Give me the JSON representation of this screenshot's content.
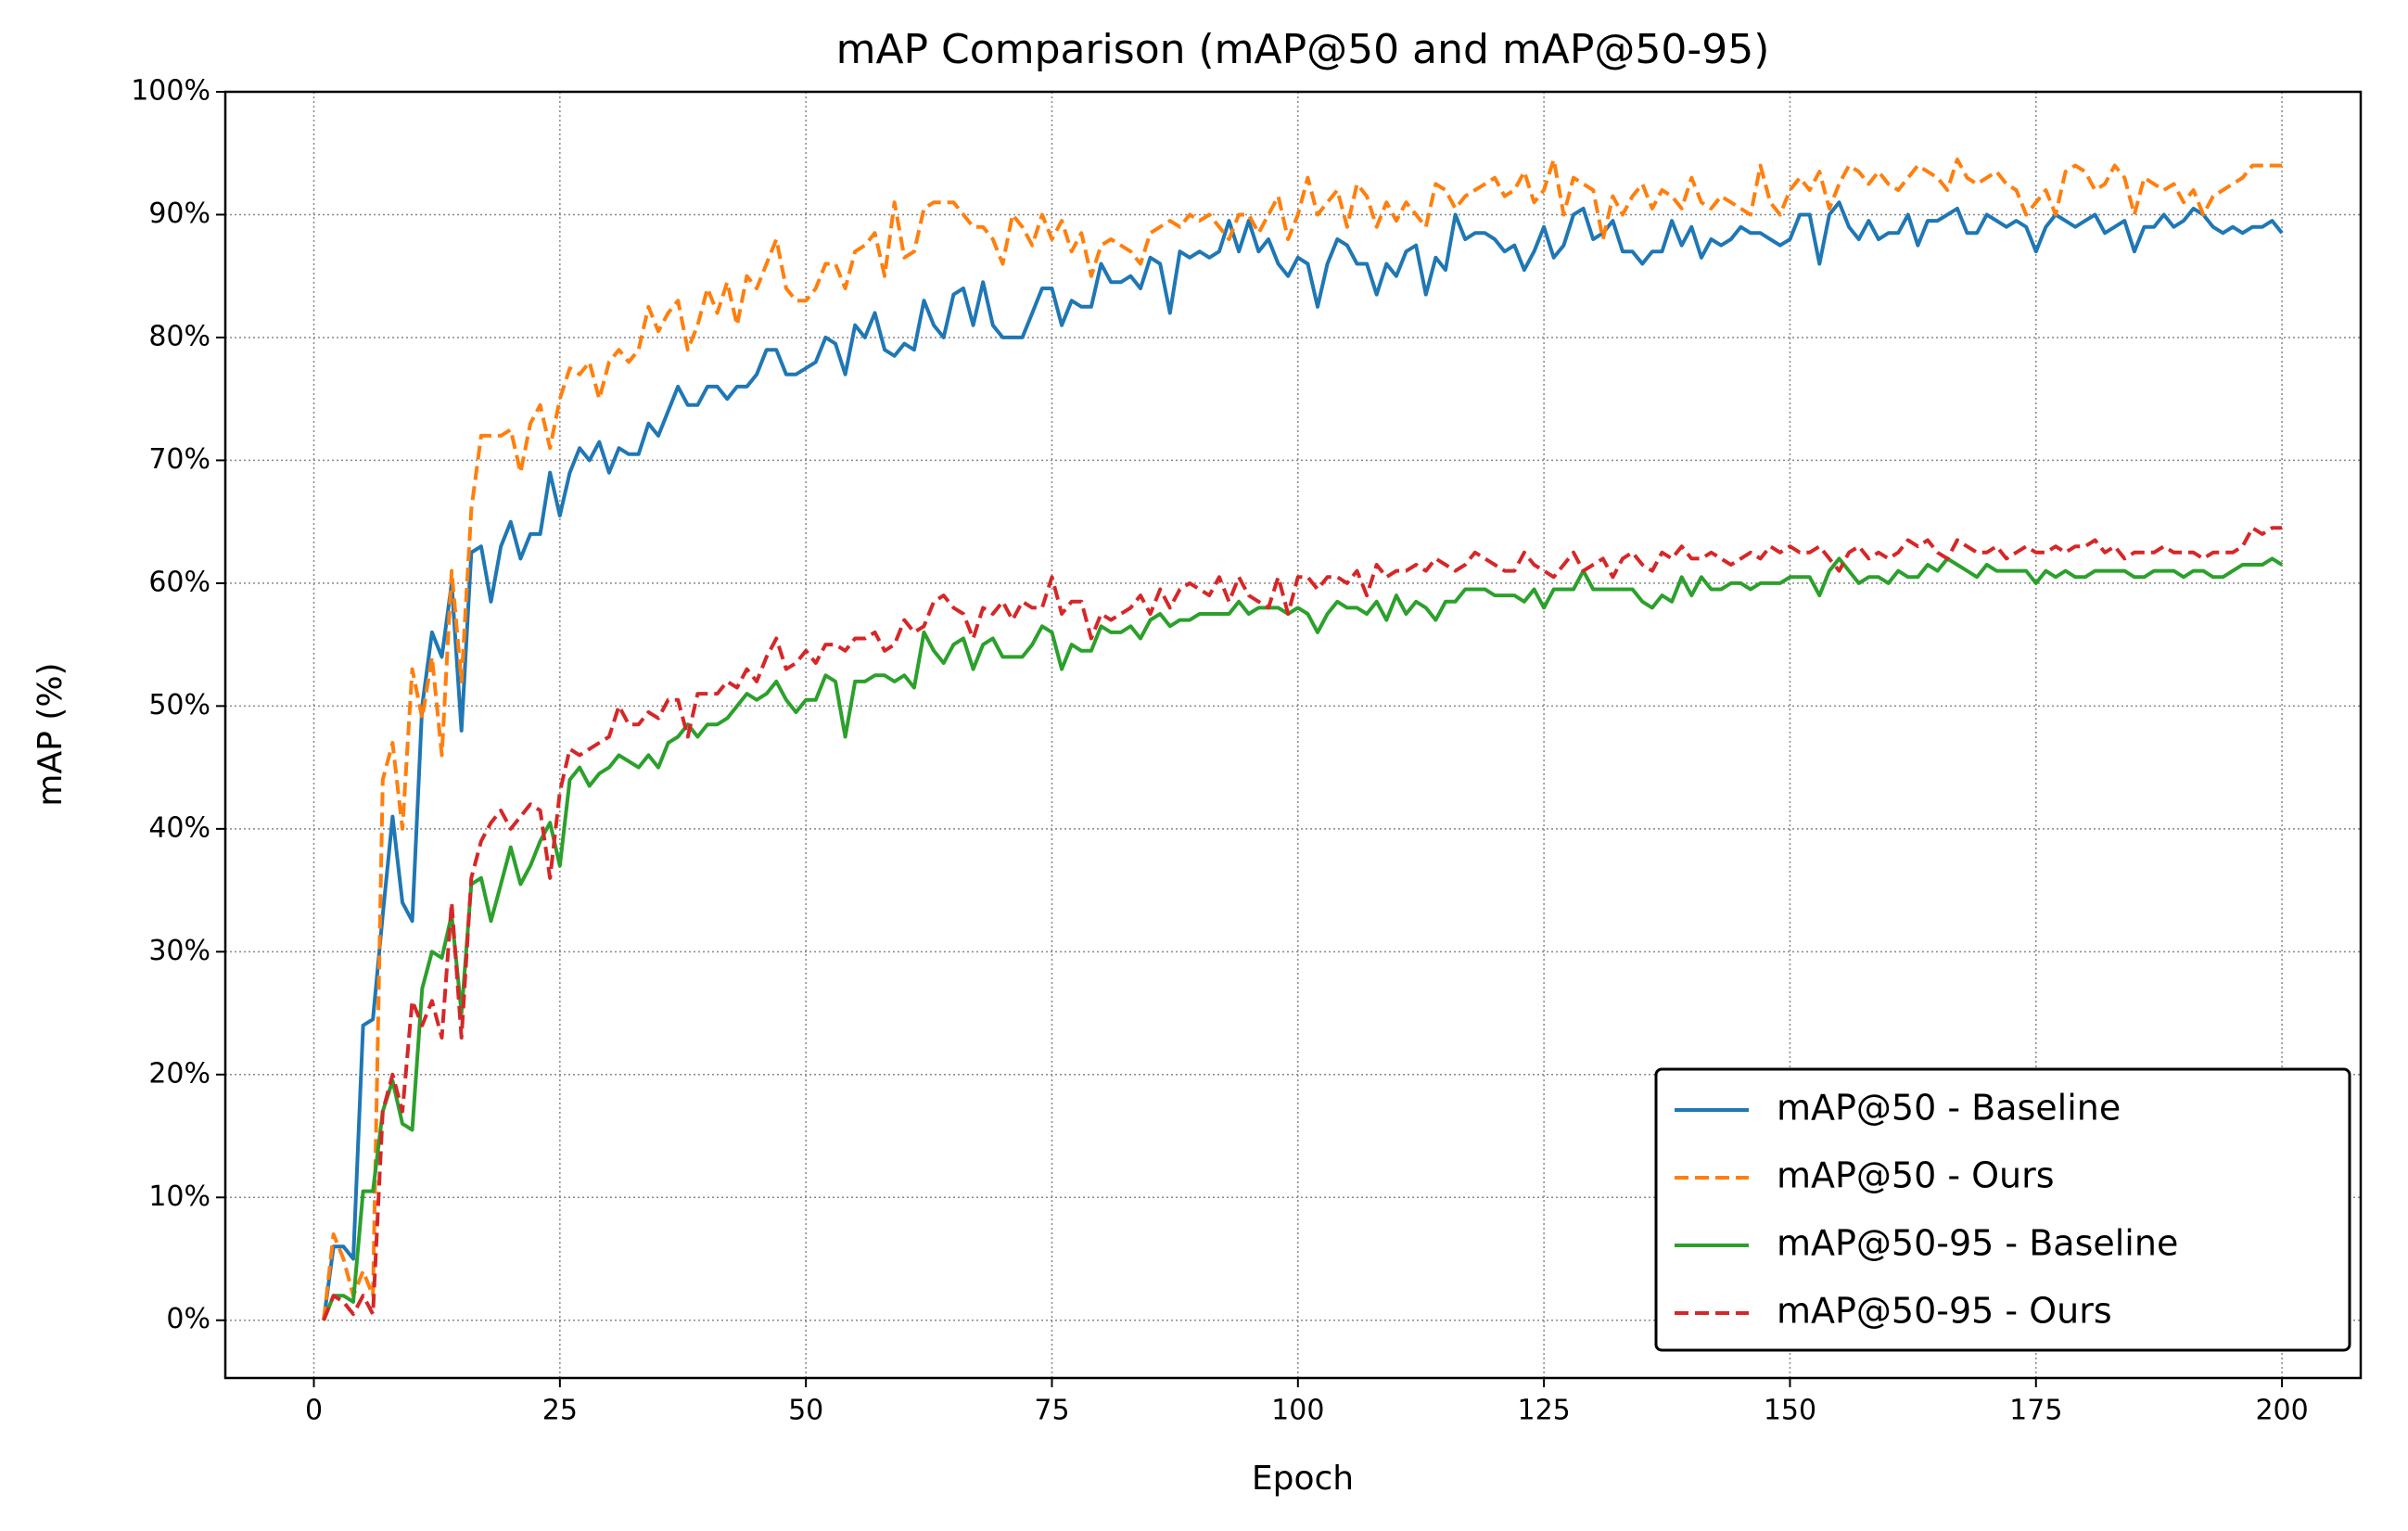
{
  "chart_data": {
    "type": "line",
    "title": "mAP Comparison (mAP@50 and mAP@50-95)",
    "x_label": "Epoch",
    "y_label": "mAP (%)",
    "xlim": [
      -9,
      208
    ],
    "ylim": [
      -4.7,
      100
    ],
    "xticks": [
      0,
      25,
      50,
      75,
      100,
      125,
      150,
      175,
      200
    ],
    "yticks": [
      {
        "value": 0,
        "label": "0%"
      },
      {
        "value": 10,
        "label": "10%"
      },
      {
        "value": 20,
        "label": "20%"
      },
      {
        "value": 30,
        "label": "30%"
      },
      {
        "value": 40,
        "label": "40%"
      },
      {
        "value": 50,
        "label": "50%"
      },
      {
        "value": 60,
        "label": "60%"
      },
      {
        "value": 70,
        "label": "70%"
      },
      {
        "value": 80,
        "label": "80%"
      },
      {
        "value": 90,
        "label": "90%"
      },
      {
        "value": 100,
        "label": "100%"
      }
    ],
    "grid": true,
    "legend": "lower right",
    "x": [
      1,
      2,
      3,
      4,
      5,
      6,
      7,
      8,
      9,
      10,
      11,
      12,
      13,
      14,
      15,
      16,
      17,
      18,
      19,
      20,
      21,
      22,
      23,
      24,
      25,
      26,
      27,
      28,
      29,
      30,
      31,
      32,
      33,
      34,
      35,
      36,
      37,
      38,
      39,
      40,
      41,
      42,
      43,
      44,
      45,
      46,
      47,
      48,
      49,
      50,
      51,
      52,
      53,
      54,
      55,
      56,
      57,
      58,
      59,
      60,
      61,
      62,
      63,
      64,
      65,
      66,
      67,
      68,
      69,
      70,
      71,
      72,
      73,
      74,
      75,
      76,
      77,
      78,
      79,
      80,
      81,
      82,
      83,
      84,
      85,
      86,
      87,
      88,
      89,
      90,
      91,
      92,
      93,
      94,
      95,
      96,
      97,
      98,
      99,
      100,
      101,
      102,
      103,
      104,
      105,
      106,
      107,
      108,
      109,
      110,
      111,
      112,
      113,
      114,
      115,
      116,
      117,
      118,
      119,
      120,
      121,
      122,
      123,
      124,
      125,
      126,
      127,
      128,
      129,
      130,
      131,
      132,
      133,
      134,
      135,
      136,
      137,
      138,
      139,
      140,
      141,
      142,
      143,
      144,
      145,
      146,
      147,
      148,
      149,
      150,
      151,
      152,
      153,
      154,
      155,
      156,
      157,
      158,
      159,
      160,
      161,
      162,
      163,
      164,
      165,
      166,
      167,
      168,
      169,
      170,
      171,
      172,
      173,
      174,
      175,
      176,
      177,
      178,
      179,
      180,
      181,
      182,
      183,
      184,
      185,
      186,
      187,
      188,
      189,
      190,
      191,
      192,
      193,
      194,
      195,
      196,
      197,
      198,
      199,
      200
    ],
    "series": [
      {
        "name": "mAP@50 - Baseline",
        "color": "#1f77b4",
        "linestyle": "solid",
        "values": [
          0,
          6,
          6,
          5,
          24,
          24.5,
          33,
          41,
          34,
          32.5,
          50,
          56,
          54,
          60,
          48,
          62.5,
          63,
          58.5,
          63,
          65,
          62,
          64,
          64,
          69,
          65.5,
          69,
          71,
          70,
          71.5,
          69,
          71,
          70.5,
          70.5,
          73,
          72,
          74,
          76,
          74.5,
          74.5,
          76,
          76,
          75,
          76,
          76,
          77,
          79,
          79,
          77,
          77,
          77.5,
          78,
          80,
          79.5,
          77,
          81,
          80,
          82,
          79,
          78.5,
          79.5,
          79,
          83,
          81,
          80,
          83.5,
          84,
          81,
          84.5,
          81,
          80,
          80,
          80,
          82,
          84,
          84,
          81,
          83,
          82.5,
          82.5,
          86,
          84.5,
          84.5,
          85,
          84,
          86.5,
          86,
          82,
          87,
          86.5,
          87,
          86.5,
          87,
          89.5,
          87,
          89.5,
          87,
          88,
          86,
          85,
          86.5,
          86,
          82.5,
          86,
          88,
          87.5,
          86,
          86,
          83.5,
          86,
          85,
          87,
          87.5,
          83.5,
          86.5,
          85.5,
          90,
          88,
          88.5,
          88.5,
          88,
          87,
          87.5,
          85.5,
          87,
          89,
          86.5,
          87.5,
          90,
          90.5,
          88,
          88.5,
          89.5,
          87,
          87,
          86,
          87,
          87,
          89.5,
          87.5,
          89,
          86.5,
          88,
          87.5,
          88,
          89,
          88.5,
          88.5,
          88,
          87.5,
          88,
          90,
          90,
          86,
          90,
          91,
          89,
          88,
          89.5,
          88,
          88.5,
          88.5,
          90,
          87.5,
          89.5,
          89.5,
          90,
          90.5,
          88.5,
          88.5,
          90,
          89.5,
          89,
          89.5,
          89,
          87,
          89,
          90,
          89.5,
          89,
          89.5,
          90,
          88.5,
          89,
          89.5,
          87,
          89,
          89,
          90,
          89,
          89.5,
          90.5,
          90,
          89,
          88.5,
          89,
          88.5,
          89,
          89,
          89.5,
          88.5
        ]
      },
      {
        "name": "mAP@50 - Ours",
        "color": "#ff7f0e",
        "linestyle": "dashed",
        "values": [
          0,
          7,
          5,
          2,
          4,
          2,
          44,
          47,
          40,
          53,
          49,
          54,
          46,
          61,
          52,
          66,
          72,
          72,
          72,
          72.5,
          69,
          73,
          74.5,
          71,
          75,
          77.5,
          77,
          78,
          75,
          78,
          79,
          78,
          79,
          82.5,
          80.5,
          82,
          83,
          79,
          81,
          84,
          82,
          84.5,
          81,
          85,
          84,
          86,
          88,
          84,
          83,
          83,
          84,
          86,
          86,
          84,
          87,
          87.5,
          88.5,
          85,
          91,
          86.5,
          87,
          90.5,
          91,
          91,
          91,
          90,
          89,
          89,
          88,
          86,
          90,
          89,
          87.5,
          90,
          88,
          89.5,
          87,
          88.5,
          85,
          87.5,
          88,
          87.5,
          87,
          86,
          88.5,
          89,
          89.5,
          89,
          90,
          89.5,
          90,
          89,
          88,
          90,
          90,
          88.5,
          90,
          91.5,
          88,
          90,
          93,
          90,
          91,
          92,
          89,
          92.5,
          91.5,
          89,
          91,
          89.5,
          91,
          90,
          89,
          92.5,
          92,
          90.5,
          91.5,
          92,
          92.5,
          93,
          91.5,
          92,
          93.5,
          91,
          92,
          94.5,
          90,
          93,
          92.5,
          92,
          88,
          91.5,
          90,
          91.5,
          92.5,
          90.5,
          92,
          91.5,
          90.5,
          93,
          91,
          90.5,
          91.5,
          91,
          90.5,
          90,
          94,
          91,
          90,
          92,
          93,
          92,
          93.5,
          90.5,
          92.5,
          94,
          93.5,
          92.5,
          93.5,
          92.5,
          92,
          93,
          94,
          93.5,
          93,
          92,
          94.5,
          93,
          92.5,
          93,
          93.5,
          92.5,
          92,
          90,
          91,
          92,
          90,
          93.5,
          94,
          93.5,
          92,
          92.5,
          94,
          93,
          90,
          93,
          92.5,
          92,
          92.5,
          91,
          92,
          90,
          91.5,
          92,
          92.5,
          93,
          94,
          94,
          94,
          94
        ]
      },
      {
        "name": "mAP@50-95 - Baseline",
        "color": "#2ca02c",
        "linestyle": "solid",
        "values": [
          0,
          2,
          2,
          1.5,
          10.5,
          10.5,
          17,
          19.5,
          16,
          15.5,
          27,
          30,
          29.5,
          33,
          25,
          35.5,
          36,
          32.5,
          35.5,
          38.5,
          35.5,
          37,
          39,
          40.5,
          37,
          44,
          45,
          43.5,
          44.5,
          45,
          46,
          45.5,
          45,
          46,
          45,
          47,
          47.5,
          48.5,
          47.5,
          48.5,
          48.5,
          49,
          50,
          51,
          50.5,
          51,
          52,
          50.5,
          49.5,
          50.5,
          50.5,
          52.5,
          52,
          47.5,
          52,
          52,
          52.5,
          52.5,
          52,
          52.5,
          51.5,
          56,
          54.5,
          53.5,
          55,
          55.5,
          53,
          55,
          55.5,
          54,
          54,
          54,
          55,
          56.5,
          56,
          53,
          55,
          54.5,
          54.5,
          56.5,
          56,
          56,
          56.5,
          55.5,
          57,
          57.5,
          56.5,
          57,
          57,
          57.5,
          57.5,
          57.5,
          57.5,
          58.5,
          57.5,
          58,
          58,
          58,
          57.5,
          58,
          57.5,
          56,
          57.5,
          58.5,
          58,
          58,
          57.5,
          58.5,
          57,
          59,
          57.5,
          58.5,
          58,
          57,
          58.5,
          58.5,
          59.5,
          59.5,
          59.5,
          59,
          59,
          59,
          58.5,
          59.5,
          58,
          59.5,
          59.5,
          59.5,
          61,
          59.5,
          59.5,
          59.5,
          59.5,
          59.5,
          58.5,
          58,
          59,
          58.5,
          60.5,
          59,
          60.5,
          59.5,
          59.5,
          60,
          60,
          59.5,
          60,
          60,
          60,
          60.5,
          60.5,
          60.5,
          59,
          61,
          62,
          61,
          60,
          60.5,
          60.5,
          60,
          61,
          60.5,
          60.5,
          61.5,
          61,
          62,
          61.5,
          61,
          60.5,
          61.5,
          61,
          61,
          61,
          61,
          60,
          61,
          60.5,
          61,
          60.5,
          60.5,
          61,
          61,
          61,
          61,
          60.5,
          60.5,
          61,
          61,
          61,
          60.5,
          61,
          61,
          60.5,
          60.5,
          61,
          61.5,
          61.5,
          61.5,
          62,
          61.5
        ]
      },
      {
        "name": "mAP@50-95 - Ours",
        "color": "#d62728",
        "linestyle": "dashed",
        "values": [
          0,
          2,
          1.5,
          0.5,
          2,
          0.5,
          17,
          20,
          17,
          26,
          24,
          26,
          23,
          34,
          23,
          36,
          39,
          40.5,
          41.5,
          40,
          41,
          42,
          41.5,
          36,
          43,
          46.5,
          46,
          46.5,
          47,
          47.5,
          50,
          48.5,
          48.5,
          49.5,
          49,
          50.5,
          50.5,
          47.5,
          51,
          51,
          51,
          52,
          51.5,
          53,
          52,
          54,
          55.5,
          53,
          53.5,
          54.5,
          53.5,
          55,
          55,
          54.5,
          55.5,
          55.5,
          56,
          54.5,
          55,
          57,
          56,
          56.5,
          58.5,
          59,
          58,
          57.5,
          55.5,
          58,
          57.5,
          58.5,
          57,
          58.5,
          58,
          58,
          60.5,
          57.5,
          58.5,
          58.5,
          55.5,
          57.5,
          57,
          57.5,
          58,
          59,
          57.5,
          59.5,
          58,
          59.5,
          60,
          59.5,
          59,
          60.5,
          58.5,
          60.5,
          59,
          58.5,
          58,
          60.5,
          57.5,
          60.5,
          60.5,
          59.5,
          60.5,
          60.5,
          60,
          61,
          59,
          61.5,
          60.5,
          61,
          61,
          61.5,
          61,
          62,
          61.5,
          61,
          61.5,
          62.5,
          62,
          61.5,
          61,
          61,
          62.5,
          61.5,
          61,
          60.5,
          61.5,
          62.5,
          61,
          61.5,
          62,
          60.5,
          62,
          62.5,
          61.5,
          61,
          62.5,
          62,
          63,
          62,
          62,
          62.5,
          62,
          61.5,
          62,
          62.5,
          62,
          63,
          62.5,
          63,
          62.5,
          62.5,
          63,
          62,
          61,
          62.5,
          63,
          62,
          62.5,
          62,
          62.5,
          63.5,
          63,
          63.5,
          62.5,
          62,
          63.5,
          63,
          62.5,
          62.5,
          63,
          62,
          62.5,
          63,
          62.5,
          62.5,
          63,
          62.5,
          63,
          63,
          63.5,
          62.5,
          63,
          62,
          62.5,
          62.5,
          62.5,
          63,
          62.5,
          62.5,
          62.5,
          62,
          62.5,
          62.5,
          62.5,
          63,
          64.5,
          64,
          64.5,
          64.5
        ]
      }
    ]
  }
}
